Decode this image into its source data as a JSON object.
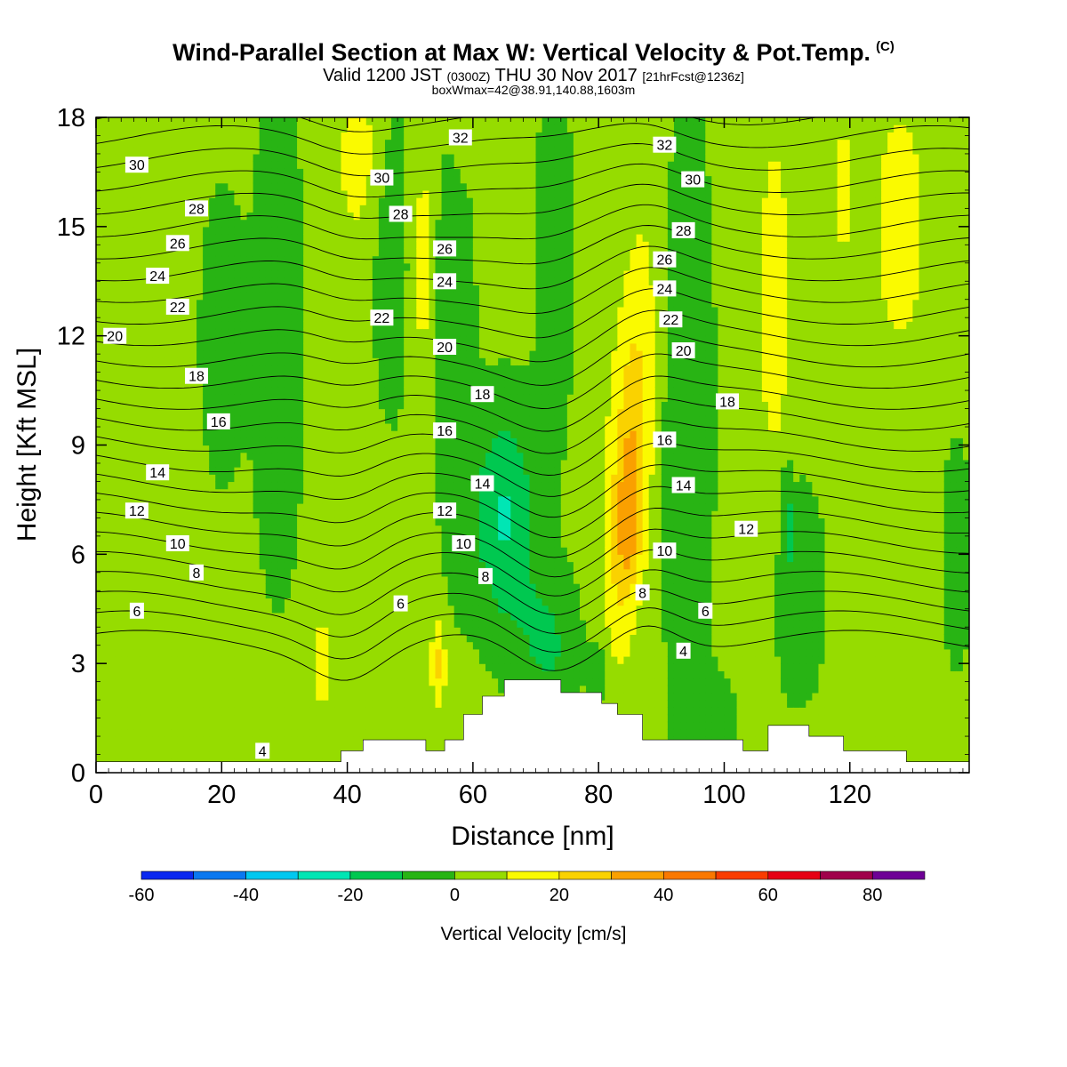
{
  "title": {
    "main": "Wind-Parallel Section at Max W: Vertical Velocity & Pot.Temp.",
    "copyright": "(C)",
    "valid_prefix": "Valid 1200 JST",
    "valid_z": "(0300Z)",
    "valid_date": "THU 30 Nov 2017",
    "forecast": "[21hrFcst@1236z]",
    "boxwmax": "boxWmax=42@38.91,140.88,1603m"
  },
  "chart_data": {
    "type": "heatmap",
    "xlabel": "Distance [nm]",
    "ylabel": "Height [Kft MSL]",
    "xlim": [
      0,
      139
    ],
    "ylim": [
      0,
      18
    ],
    "x_ticks": [
      0,
      20,
      40,
      60,
      80,
      100,
      120
    ],
    "y_ticks": [
      0,
      3,
      6,
      9,
      12,
      15,
      18
    ],
    "colorbar": {
      "label": "Vertical Velocity [cm/s]",
      "bounds": [
        -60,
        -50,
        -40,
        -30,
        -20,
        -10,
        0,
        10,
        20,
        30,
        40,
        50,
        60,
        70,
        80,
        90
      ],
      "tick_values": [
        -60,
        -40,
        -20,
        0,
        20,
        40,
        60,
        80
      ],
      "tick_labels": [
        "-60",
        "-40",
        "-20",
        "0",
        "20",
        "40",
        "60",
        "80"
      ],
      "colors": [
        "#0a28f0",
        "#0a78f0",
        "#00c8f0",
        "#00e6b4",
        "#00c850",
        "#28b414",
        "#96dc00",
        "#fafa00",
        "#fad200",
        "#faa000",
        "#fa7800",
        "#fa3c00",
        "#e60014",
        "#a0004b",
        "#6e0096"
      ]
    },
    "terrain": [
      [
        0,
        0.3
      ],
      [
        39,
        0.3
      ],
      [
        39,
        0.6
      ],
      [
        42.5,
        0.6
      ],
      [
        42.5,
        0.9
      ],
      [
        52.5,
        0.9
      ],
      [
        52.5,
        0.6
      ],
      [
        55.5,
        0.6
      ],
      [
        55.5,
        0.9
      ],
      [
        58.5,
        0.9
      ],
      [
        58.5,
        1.6
      ],
      [
        61.5,
        1.6
      ],
      [
        61.5,
        2.1
      ],
      [
        65,
        2.1
      ],
      [
        65,
        2.55
      ],
      [
        74,
        2.55
      ],
      [
        74,
        2.2
      ],
      [
        80.5,
        2.2
      ],
      [
        80.5,
        1.9
      ],
      [
        83,
        1.9
      ],
      [
        83,
        1.6
      ],
      [
        87,
        1.6
      ],
      [
        87,
        0.9
      ],
      [
        103,
        0.9
      ],
      [
        103,
        0.6
      ],
      [
        107,
        0.6
      ],
      [
        107,
        1.3
      ],
      [
        113.5,
        1.3
      ],
      [
        113.5,
        1.0
      ],
      [
        119,
        1.0
      ],
      [
        119,
        0.6
      ],
      [
        129,
        0.6
      ],
      [
        129,
        0.3
      ],
      [
        139,
        0.3
      ]
    ],
    "theta_labels": [
      {
        "text": "30",
        "x": 6.5,
        "y": 16.7
      },
      {
        "text": "28",
        "x": 16,
        "y": 15.5
      },
      {
        "text": "26",
        "x": 13,
        "y": 14.55
      },
      {
        "text": "24",
        "x": 9.8,
        "y": 13.65
      },
      {
        "text": "22",
        "x": 13,
        "y": 12.8
      },
      {
        "text": "20",
        "x": 3,
        "y": 12.0
      },
      {
        "text": "18",
        "x": 16,
        "y": 10.9
      },
      {
        "text": "16",
        "x": 19.5,
        "y": 9.65
      },
      {
        "text": "14",
        "x": 9.8,
        "y": 8.25
      },
      {
        "text": "12",
        "x": 6.5,
        "y": 7.2
      },
      {
        "text": "10",
        "x": 13,
        "y": 6.3
      },
      {
        "text": "8",
        "x": 16,
        "y": 5.5
      },
      {
        "text": "6",
        "x": 6.5,
        "y": 4.45
      },
      {
        "text": "4",
        "x": 26.5,
        "y": 0.6
      },
      {
        "text": "32",
        "x": 58,
        "y": 17.45
      },
      {
        "text": "30",
        "x": 45.5,
        "y": 16.35
      },
      {
        "text": "28",
        "x": 48.5,
        "y": 15.35
      },
      {
        "text": "26",
        "x": 55.5,
        "y": 14.4
      },
      {
        "text": "24",
        "x": 55.5,
        "y": 13.5
      },
      {
        "text": "22",
        "x": 45.5,
        "y": 12.5
      },
      {
        "text": "20",
        "x": 55.5,
        "y": 11.7
      },
      {
        "text": "18",
        "x": 61.5,
        "y": 10.4
      },
      {
        "text": "16",
        "x": 55.5,
        "y": 9.4
      },
      {
        "text": "14",
        "x": 61.5,
        "y": 7.95
      },
      {
        "text": "12",
        "x": 55.5,
        "y": 7.2
      },
      {
        "text": "10",
        "x": 58.5,
        "y": 6.3
      },
      {
        "text": "8",
        "x": 62,
        "y": 5.4
      },
      {
        "text": "6",
        "x": 48.5,
        "y": 4.65
      },
      {
        "text": "32",
        "x": 90.5,
        "y": 17.25
      },
      {
        "text": "30",
        "x": 95,
        "y": 16.3
      },
      {
        "text": "28",
        "x": 93.5,
        "y": 14.9
      },
      {
        "text": "26",
        "x": 90.5,
        "y": 14.1
      },
      {
        "text": "24",
        "x": 90.5,
        "y": 13.3
      },
      {
        "text": "22",
        "x": 91.5,
        "y": 12.45
      },
      {
        "text": "20",
        "x": 93.5,
        "y": 11.6
      },
      {
        "text": "18",
        "x": 100.5,
        "y": 10.2
      },
      {
        "text": "16",
        "x": 90.5,
        "y": 9.15
      },
      {
        "text": "14",
        "x": 93.5,
        "y": 7.9
      },
      {
        "text": "12",
        "x": 103.5,
        "y": 6.7
      },
      {
        "text": "10",
        "x": 90.5,
        "y": 6.1
      },
      {
        "text": "8",
        "x": 87,
        "y": 4.95
      },
      {
        "text": "6",
        "x": 97,
        "y": 4.45
      },
      {
        "text": "4",
        "x": 93.5,
        "y": 3.35
      }
    ]
  }
}
